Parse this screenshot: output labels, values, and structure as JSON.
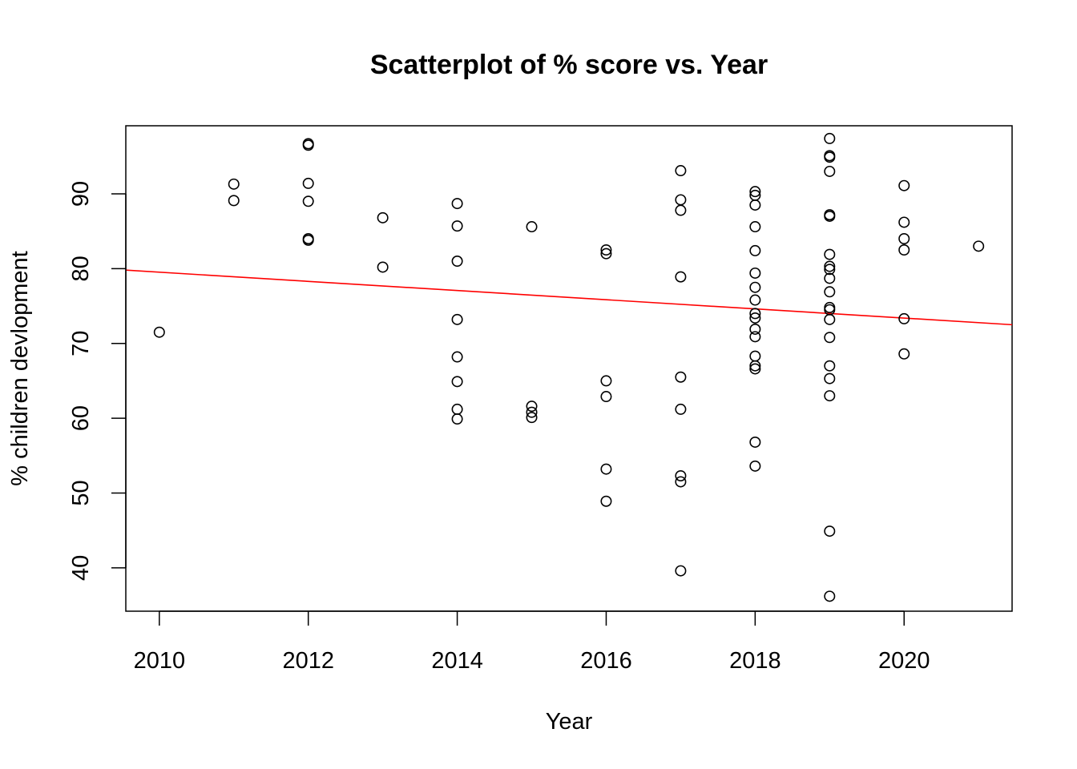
{
  "chart_data": {
    "type": "scatter",
    "title": "Scatterplot of % score vs. Year",
    "xlabel": "Year",
    "ylabel": "% children devlopment",
    "xlim": [
      2009.55,
      2021.45
    ],
    "ylim": [
      34.2,
      99.1
    ],
    "xticks": [
      2010,
      2012,
      2014,
      2016,
      2018,
      2020
    ],
    "yticks": [
      40,
      50,
      60,
      70,
      80,
      90
    ],
    "xtick_labels": [
      "2010",
      "2012",
      "2014",
      "2016",
      "2018",
      "2020"
    ],
    "ytick_labels": [
      "40",
      "50",
      "60",
      "70",
      "80",
      "90"
    ],
    "grid": false,
    "fit_line": {
      "color": "#ff0000",
      "x": [
        2009.55,
        2021.45
      ],
      "y": [
        79.8,
        72.5
      ]
    },
    "points": [
      {
        "x": 2010,
        "y": 71.5
      },
      {
        "x": 2011,
        "y": 91.3
      },
      {
        "x": 2011,
        "y": 89.1
      },
      {
        "x": 2012,
        "y": 96.7
      },
      {
        "x": 2012,
        "y": 96.5
      },
      {
        "x": 2012,
        "y": 91.4
      },
      {
        "x": 2012,
        "y": 89.0
      },
      {
        "x": 2012,
        "y": 84.0
      },
      {
        "x": 2012,
        "y": 83.8
      },
      {
        "x": 2013,
        "y": 86.8
      },
      {
        "x": 2013,
        "y": 80.2
      },
      {
        "x": 2014,
        "y": 88.7
      },
      {
        "x": 2014,
        "y": 85.7
      },
      {
        "x": 2014,
        "y": 81.0
      },
      {
        "x": 2014,
        "y": 73.2
      },
      {
        "x": 2014,
        "y": 68.2
      },
      {
        "x": 2014,
        "y": 64.9
      },
      {
        "x": 2014,
        "y": 61.2
      },
      {
        "x": 2014,
        "y": 59.9
      },
      {
        "x": 2015,
        "y": 85.6
      },
      {
        "x": 2015,
        "y": 61.6
      },
      {
        "x": 2015,
        "y": 60.8
      },
      {
        "x": 2015,
        "y": 60.1
      },
      {
        "x": 2016,
        "y": 82.5
      },
      {
        "x": 2016,
        "y": 82.0
      },
      {
        "x": 2016,
        "y": 65.0
      },
      {
        "x": 2016,
        "y": 62.9
      },
      {
        "x": 2016,
        "y": 53.2
      },
      {
        "x": 2016,
        "y": 48.9
      },
      {
        "x": 2017,
        "y": 93.1
      },
      {
        "x": 2017,
        "y": 89.2
      },
      {
        "x": 2017,
        "y": 87.8
      },
      {
        "x": 2017,
        "y": 78.9
      },
      {
        "x": 2017,
        "y": 65.5
      },
      {
        "x": 2017,
        "y": 61.2
      },
      {
        "x": 2017,
        "y": 52.3
      },
      {
        "x": 2017,
        "y": 51.5
      },
      {
        "x": 2017,
        "y": 39.6
      },
      {
        "x": 2018,
        "y": 90.3
      },
      {
        "x": 2018,
        "y": 89.8
      },
      {
        "x": 2018,
        "y": 88.5
      },
      {
        "x": 2018,
        "y": 85.6
      },
      {
        "x": 2018,
        "y": 82.4
      },
      {
        "x": 2018,
        "y": 79.4
      },
      {
        "x": 2018,
        "y": 77.5
      },
      {
        "x": 2018,
        "y": 75.8
      },
      {
        "x": 2018,
        "y": 74.0
      },
      {
        "x": 2018,
        "y": 73.4
      },
      {
        "x": 2018,
        "y": 71.9
      },
      {
        "x": 2018,
        "y": 70.9
      },
      {
        "x": 2018,
        "y": 68.3
      },
      {
        "x": 2018,
        "y": 67.0
      },
      {
        "x": 2018,
        "y": 66.6
      },
      {
        "x": 2018,
        "y": 56.8
      },
      {
        "x": 2018,
        "y": 53.6
      },
      {
        "x": 2019,
        "y": 97.4
      },
      {
        "x": 2019,
        "y": 95.1
      },
      {
        "x": 2019,
        "y": 94.9
      },
      {
        "x": 2019,
        "y": 93.0
      },
      {
        "x": 2019,
        "y": 87.2
      },
      {
        "x": 2019,
        "y": 87.0
      },
      {
        "x": 2019,
        "y": 81.9
      },
      {
        "x": 2019,
        "y": 80.3
      },
      {
        "x": 2019,
        "y": 79.9
      },
      {
        "x": 2019,
        "y": 78.7
      },
      {
        "x": 2019,
        "y": 76.9
      },
      {
        "x": 2019,
        "y": 74.8
      },
      {
        "x": 2019,
        "y": 74.5
      },
      {
        "x": 2019,
        "y": 73.2
      },
      {
        "x": 2019,
        "y": 70.8
      },
      {
        "x": 2019,
        "y": 67.0
      },
      {
        "x": 2019,
        "y": 65.3
      },
      {
        "x": 2019,
        "y": 63.0
      },
      {
        "x": 2019,
        "y": 44.9
      },
      {
        "x": 2019,
        "y": 36.2
      },
      {
        "x": 2020,
        "y": 91.1
      },
      {
        "x": 2020,
        "y": 86.2
      },
      {
        "x": 2020,
        "y": 84.0
      },
      {
        "x": 2020,
        "y": 82.5
      },
      {
        "x": 2020,
        "y": 73.3
      },
      {
        "x": 2020,
        "y": 68.6
      },
      {
        "x": 2021,
        "y": 83.0
      }
    ]
  }
}
